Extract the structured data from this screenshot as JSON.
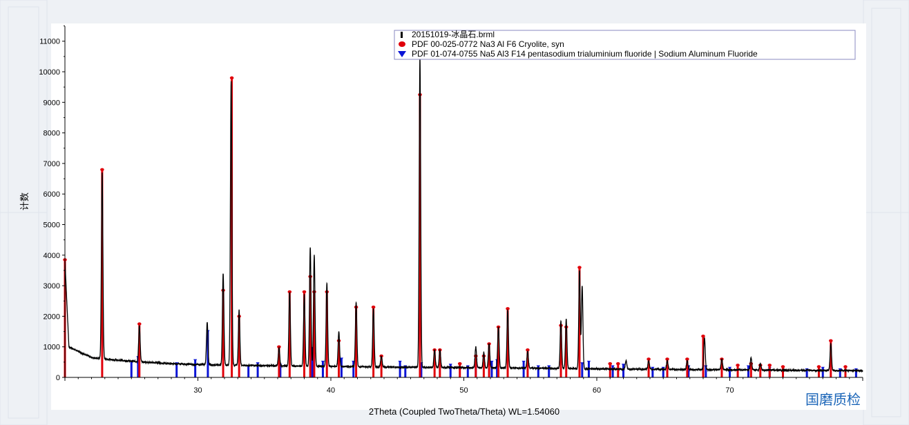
{
  "watermark": "国磨质检",
  "chart_data": {
    "type": "line",
    "xlabel": "2Theta (Coupled TwoTheta/Theta) WL=1.54060",
    "ylabel": "计数",
    "xlim": [
      20,
      80
    ],
    "ylim": [
      0,
      11400
    ],
    "x_ticks": [
      30,
      40,
      50,
      60,
      70
    ],
    "x_tick_labels": [
      "30",
      "40",
      "50",
      "60",
      "70"
    ],
    "y_ticks": [
      0,
      1000,
      2000,
      3000,
      4000,
      5000,
      6000,
      7000,
      8000,
      9000,
      10000,
      11000
    ],
    "y_tick_labels": [
      "0",
      "1000",
      "2000",
      "3000",
      "4000",
      "5000",
      "6000",
      "7000",
      "8000",
      "9000",
      "10000",
      "11000"
    ],
    "legend_position": "top-right",
    "legend": [
      "20151019-冰晶石.brml",
      "PDF 00-025-0772 Na3 Al F6 Cryolite, syn",
      "PDF 01-074-0755 Na5 Al3 F14 pentasodium trialuminium fluoride | Sodium Aluminum Fluoride"
    ],
    "colors": {
      "measured": "#000000",
      "cryolite": "#e0000a",
      "chiolite": "#0a14d6"
    },
    "measured_baseline": [
      [
        20.0,
        3800
      ],
      [
        20.3,
        1000
      ],
      [
        22,
        650
      ],
      [
        24,
        560
      ],
      [
        26,
        500
      ],
      [
        28,
        450
      ],
      [
        30,
        420
      ],
      [
        34,
        390
      ],
      [
        38,
        370
      ],
      [
        42,
        350
      ],
      [
        46,
        330
      ],
      [
        50,
        320
      ],
      [
        56,
        300
      ],
      [
        62,
        270
      ],
      [
        70,
        250
      ],
      [
        76,
        230
      ],
      [
        80,
        220
      ]
    ],
    "measured_peaks": [
      {
        "x": 22.8,
        "y": 6700
      },
      {
        "x": 25.6,
        "y": 1700
      },
      {
        "x": 30.7,
        "y": 1800
      },
      {
        "x": 31.9,
        "y": 3400
      },
      {
        "x": 32.5,
        "y": 9700
      },
      {
        "x": 33.1,
        "y": 2200
      },
      {
        "x": 36.1,
        "y": 950
      },
      {
        "x": 36.9,
        "y": 2800
      },
      {
        "x": 38.0,
        "y": 2700
      },
      {
        "x": 38.45,
        "y": 4250
      },
      {
        "x": 38.75,
        "y": 4000
      },
      {
        "x": 39.7,
        "y": 3100
      },
      {
        "x": 40.6,
        "y": 1500
      },
      {
        "x": 41.9,
        "y": 2450
      },
      {
        "x": 43.2,
        "y": 2250
      },
      {
        "x": 43.8,
        "y": 700
      },
      {
        "x": 46.7,
        "y": 10500
      },
      {
        "x": 47.8,
        "y": 900
      },
      {
        "x": 48.2,
        "y": 900
      },
      {
        "x": 50.9,
        "y": 1000
      },
      {
        "x": 51.5,
        "y": 800
      },
      {
        "x": 51.9,
        "y": 1100
      },
      {
        "x": 52.6,
        "y": 1650
      },
      {
        "x": 53.3,
        "y": 2200
      },
      {
        "x": 54.8,
        "y": 850
      },
      {
        "x": 57.3,
        "y": 1850
      },
      {
        "x": 57.7,
        "y": 1900
      },
      {
        "x": 58.7,
        "y": 3500
      },
      {
        "x": 58.9,
        "y": 3000
      },
      {
        "x": 62.2,
        "y": 550
      },
      {
        "x": 63.9,
        "y": 550
      },
      {
        "x": 65.3,
        "y": 550
      },
      {
        "x": 66.8,
        "y": 550
      },
      {
        "x": 68.1,
        "y": 1300
      },
      {
        "x": 69.4,
        "y": 600
      },
      {
        "x": 71.6,
        "y": 650
      },
      {
        "x": 72.3,
        "y": 450
      },
      {
        "x": 77.6,
        "y": 1100
      }
    ],
    "cryolite_sticks": [
      {
        "x": 20.0,
        "y": 3850
      },
      {
        "x": 22.8,
        "y": 6800
      },
      {
        "x": 25.6,
        "y": 1750
      },
      {
        "x": 31.9,
        "y": 2850
      },
      {
        "x": 32.55,
        "y": 9800
      },
      {
        "x": 33.1,
        "y": 2000
      },
      {
        "x": 36.1,
        "y": 1000
      },
      {
        "x": 36.9,
        "y": 2800
      },
      {
        "x": 38.0,
        "y": 2800
      },
      {
        "x": 38.45,
        "y": 3300
      },
      {
        "x": 38.75,
        "y": 2800
      },
      {
        "x": 39.7,
        "y": 2800
      },
      {
        "x": 40.6,
        "y": 1200
      },
      {
        "x": 41.9,
        "y": 2300
      },
      {
        "x": 43.2,
        "y": 2300
      },
      {
        "x": 43.8,
        "y": 700
      },
      {
        "x": 46.7,
        "y": 9250
      },
      {
        "x": 47.8,
        "y": 900
      },
      {
        "x": 48.2,
        "y": 900
      },
      {
        "x": 49.7,
        "y": 450
      },
      {
        "x": 50.9,
        "y": 700
      },
      {
        "x": 51.5,
        "y": 700
      },
      {
        "x": 51.9,
        "y": 1100
      },
      {
        "x": 52.6,
        "y": 1650
      },
      {
        "x": 53.3,
        "y": 2250
      },
      {
        "x": 54.8,
        "y": 900
      },
      {
        "x": 57.3,
        "y": 1700
      },
      {
        "x": 57.7,
        "y": 1650
      },
      {
        "x": 58.7,
        "y": 3600
      },
      {
        "x": 61.0,
        "y": 450
      },
      {
        "x": 61.6,
        "y": 450
      },
      {
        "x": 63.9,
        "y": 600
      },
      {
        "x": 65.3,
        "y": 600
      },
      {
        "x": 66.8,
        "y": 600
      },
      {
        "x": 68.0,
        "y": 1350
      },
      {
        "x": 69.4,
        "y": 600
      },
      {
        "x": 70.6,
        "y": 400
      },
      {
        "x": 71.6,
        "y": 450
      },
      {
        "x": 72.3,
        "y": 400
      },
      {
        "x": 73.0,
        "y": 400
      },
      {
        "x": 74.0,
        "y": 350
      },
      {
        "x": 76.7,
        "y": 350
      },
      {
        "x": 77.6,
        "y": 1200
      },
      {
        "x": 78.7,
        "y": 350
      }
    ],
    "chiolite_sticks": [
      {
        "x": 25.0,
        "y": 500
      },
      {
        "x": 25.5,
        "y": 650
      },
      {
        "x": 28.4,
        "y": 450
      },
      {
        "x": 29.8,
        "y": 550
      },
      {
        "x": 30.75,
        "y": 1500
      },
      {
        "x": 33.8,
        "y": 350
      },
      {
        "x": 34.5,
        "y": 450
      },
      {
        "x": 36.2,
        "y": 400
      },
      {
        "x": 38.6,
        "y": 950
      },
      {
        "x": 39.4,
        "y": 500
      },
      {
        "x": 40.8,
        "y": 600
      },
      {
        "x": 41.7,
        "y": 500
      },
      {
        "x": 45.2,
        "y": 500
      },
      {
        "x": 45.6,
        "y": 350
      },
      {
        "x": 46.8,
        "y": 450
      },
      {
        "x": 49.0,
        "y": 400
      },
      {
        "x": 50.3,
        "y": 350
      },
      {
        "x": 50.9,
        "y": 550
      },
      {
        "x": 52.1,
        "y": 500
      },
      {
        "x": 52.5,
        "y": 550
      },
      {
        "x": 54.5,
        "y": 500
      },
      {
        "x": 55.6,
        "y": 350
      },
      {
        "x": 56.4,
        "y": 350
      },
      {
        "x": 58.9,
        "y": 450
      },
      {
        "x": 59.4,
        "y": 500
      },
      {
        "x": 61.2,
        "y": 350
      },
      {
        "x": 62.0,
        "y": 400
      },
      {
        "x": 64.2,
        "y": 300
      },
      {
        "x": 65.0,
        "y": 300
      },
      {
        "x": 66.9,
        "y": 350
      },
      {
        "x": 68.2,
        "y": 350
      },
      {
        "x": 70.0,
        "y": 300
      },
      {
        "x": 71.4,
        "y": 350
      },
      {
        "x": 73.0,
        "y": 300
      },
      {
        "x": 75.8,
        "y": 250
      },
      {
        "x": 77.0,
        "y": 300
      },
      {
        "x": 78.3,
        "y": 250
      },
      {
        "x": 79.5,
        "y": 250
      }
    ]
  }
}
